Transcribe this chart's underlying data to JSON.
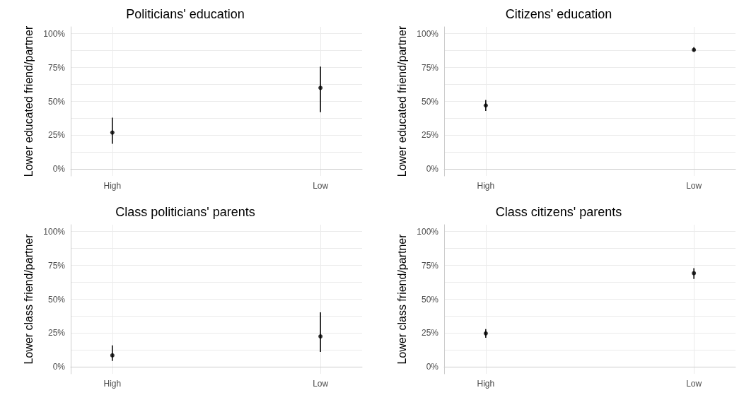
{
  "chart_data": [
    {
      "type": "scatter",
      "title": "Politicians' education",
      "ylabel": "Lower educated friend/partner",
      "categories": [
        "High",
        "Low"
      ],
      "values": [
        27,
        60
      ],
      "errors": [
        [
          18.7,
          38
        ],
        [
          42,
          75.7
        ]
      ],
      "color": "#000000",
      "marker": "circle",
      "ylim": [
        -5,
        105
      ],
      "yticks": [
        {
          "value": 0,
          "label": "0%"
        },
        {
          "value": 12.5,
          "label": null
        },
        {
          "value": 25,
          "label": "25%"
        },
        {
          "value": 37.5,
          "label": null
        },
        {
          "value": 50,
          "label": "50%"
        },
        {
          "value": 62.5,
          "label": null
        },
        {
          "value": 75,
          "label": "75%"
        },
        {
          "value": 87.5,
          "label": null
        },
        {
          "value": 100,
          "label": "100%"
        }
      ],
      "grid": true
    },
    {
      "type": "scatter",
      "title": "Citizens' education",
      "ylabel": "Lower educated friend/partner",
      "categories": [
        "High",
        "Low"
      ],
      "values": [
        47,
        88
      ],
      "errors": [
        [
          43,
          51
        ],
        [
          87,
          90
        ]
      ],
      "color": "#000000",
      "marker": "circle",
      "ylim": [
        -5,
        105
      ],
      "yticks": [
        {
          "value": 0,
          "label": "0%"
        },
        {
          "value": 12.5,
          "label": null
        },
        {
          "value": 25,
          "label": "25%"
        },
        {
          "value": 37.5,
          "label": null
        },
        {
          "value": 50,
          "label": "50%"
        },
        {
          "value": 62.5,
          "label": null
        },
        {
          "value": 75,
          "label": "75%"
        },
        {
          "value": 87.5,
          "label": null
        },
        {
          "value": 100,
          "label": "100%"
        }
      ],
      "grid": true
    },
    {
      "type": "scatter",
      "title": "Class politicians' parents",
      "ylabel": "Lower class friend/partner",
      "categories": [
        "High",
        "Low"
      ],
      "values": [
        8.6,
        22.6
      ],
      "errors": [
        [
          4.5,
          16
        ],
        [
          11.2,
          40.4
        ]
      ],
      "color": "#000000",
      "marker": "circle",
      "ylim": [
        -5,
        105
      ],
      "yticks": [
        {
          "value": 0,
          "label": "0%"
        },
        {
          "value": 12.5,
          "label": null
        },
        {
          "value": 25,
          "label": "25%"
        },
        {
          "value": 37.5,
          "label": null
        },
        {
          "value": 50,
          "label": "50%"
        },
        {
          "value": 62.5,
          "label": null
        },
        {
          "value": 75,
          "label": "75%"
        },
        {
          "value": 87.5,
          "label": null
        },
        {
          "value": 100,
          "label": "100%"
        }
      ],
      "grid": true
    },
    {
      "type": "scatter",
      "title": "Class citizens' parents",
      "ylabel": "Lower class friend/partner",
      "categories": [
        "High",
        "Low"
      ],
      "values": [
        24.8,
        69.2
      ],
      "errors": [
        [
          21.6,
          28
        ],
        [
          65,
          73
        ]
      ],
      "color": "#000000",
      "marker": "circle",
      "ylim": [
        -5,
        105
      ],
      "yticks": [
        {
          "value": 0,
          "label": "0%"
        },
        {
          "value": 12.5,
          "label": null
        },
        {
          "value": 25,
          "label": "25%"
        },
        {
          "value": 37.5,
          "label": null
        },
        {
          "value": 50,
          "label": "50%"
        },
        {
          "value": 62.5,
          "label": null
        },
        {
          "value": 75,
          "label": "75%"
        },
        {
          "value": 87.5,
          "label": null
        },
        {
          "value": 100,
          "label": "100%"
        }
      ],
      "grid": true
    }
  ]
}
